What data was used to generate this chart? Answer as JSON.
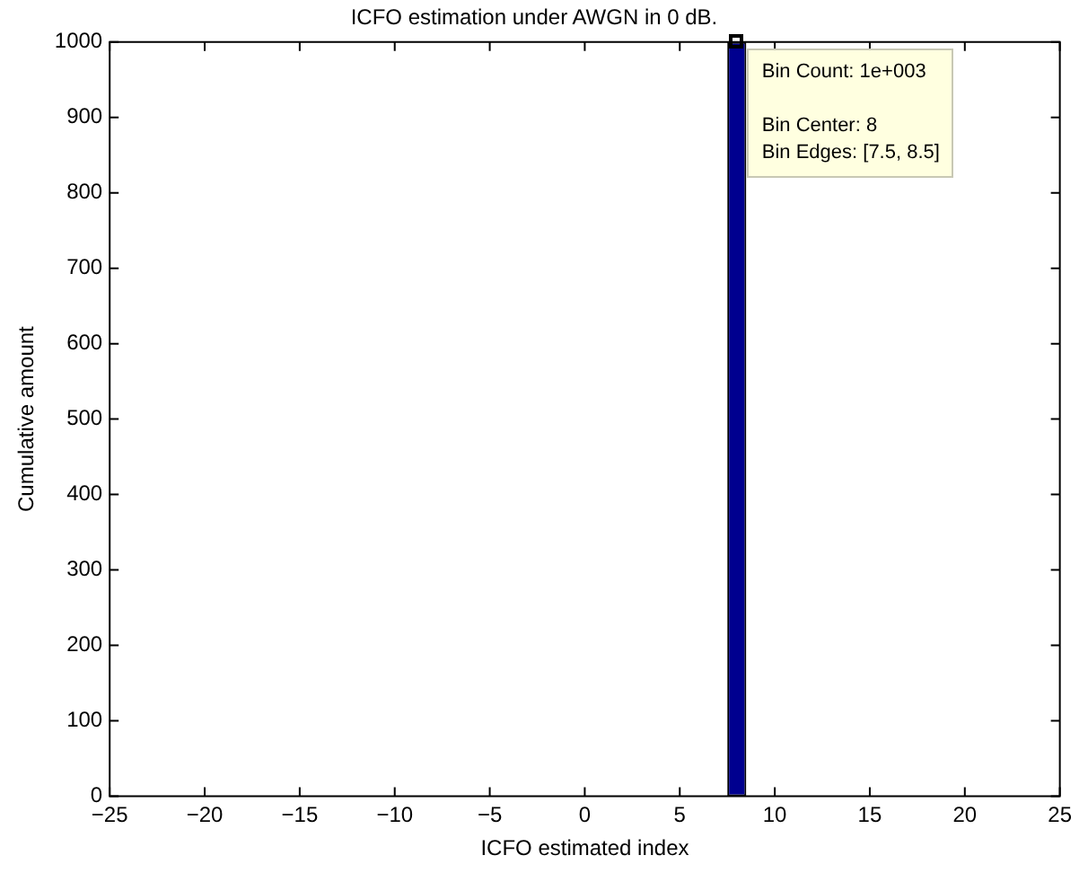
{
  "chart_data": {
    "type": "histogram",
    "title": "ICFO estimation under AWGN in 0 dB.",
    "xlabel": "ICFO estimated index",
    "ylabel": "Cumulative amount",
    "bins": [
      7.5,
      8.5
    ],
    "values": [
      1000
    ],
    "color": "#00008f",
    "xlim": [
      -25,
      25
    ],
    "xticks": [
      -25,
      -20,
      -15,
      -10,
      -5,
      0,
      5,
      10,
      15,
      20,
      25
    ],
    "ylim": [
      0,
      1000
    ],
    "yticks": [
      0,
      100,
      200,
      300,
      400,
      500,
      600,
      700,
      800,
      900,
      1000
    ],
    "annotations": [
      {
        "text": "Bin Count: 1e+003",
        "x": 8,
        "y": 1000
      },
      "Bin Center: 8",
      "Bin Edges: [7.5, 8.5]"
    ]
  }
}
